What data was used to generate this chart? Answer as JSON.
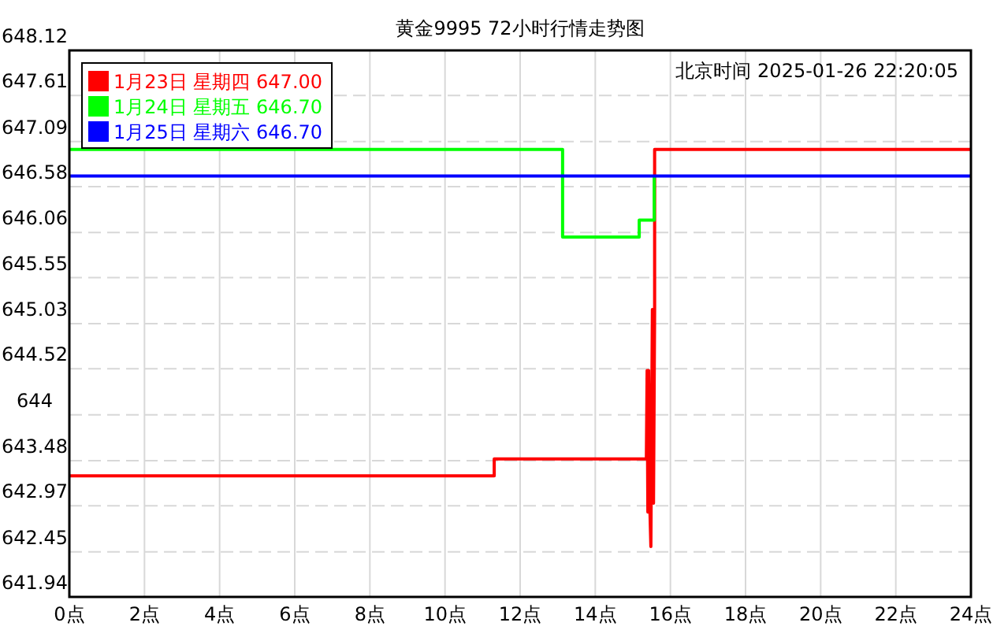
{
  "chart_data": {
    "type": "line",
    "title": "黄金9995 72小时行情走势图",
    "annotations": [
      "北京时间 2025-01-26 22:20:05"
    ],
    "xlim": [
      0,
      24
    ],
    "xticks": [
      {
        "value": 0,
        "label": "0点"
      },
      {
        "value": 2,
        "label": "2点"
      },
      {
        "value": 4,
        "label": "4点"
      },
      {
        "value": 6,
        "label": "6点"
      },
      {
        "value": 8,
        "label": "8点"
      },
      {
        "value": 10,
        "label": "10点"
      },
      {
        "value": 12,
        "label": "12点"
      },
      {
        "value": 14,
        "label": "14点"
      },
      {
        "value": 16,
        "label": "16点"
      },
      {
        "value": 18,
        "label": "18点"
      },
      {
        "value": 20,
        "label": "20点"
      },
      {
        "value": 22,
        "label": "22点"
      },
      {
        "value": 24,
        "label": "24点"
      }
    ],
    "ylim": [
      641.94,
      648.12
    ],
    "yticks": [
      641.94,
      642.45,
      642.97,
      643.48,
      644,
      644.52,
      645.03,
      645.55,
      646.06,
      646.58,
      647.09,
      647.61,
      648.12
    ],
    "grid": true,
    "legend": "top left",
    "marker": "none",
    "line_style": "solid",
    "series": [
      {
        "name": "1月23日 星期四 647.00",
        "color": "#ff0000",
        "x": [
          0,
          11.31,
          11.31,
          15.36,
          15.38,
          15.4,
          15.42,
          15.45,
          15.48,
          15.52,
          15.55,
          15.58,
          15.58,
          24
        ],
        "values": [
          643.31,
          643.31,
          643.5,
          643.5,
          644.5,
          642.9,
          644.5,
          643.0,
          642.51,
          645.19,
          643.0,
          645.19,
          647.0,
          647.0
        ]
      },
      {
        "name": "1月24日 星期五 646.70",
        "color": "#00ff00",
        "x": [
          0,
          13.13,
          13.13,
          15.17,
          15.17,
          15.57,
          15.57
        ],
        "values": [
          647.0,
          647.0,
          646.01,
          646.01,
          646.2,
          646.2,
          646.7
        ]
      },
      {
        "name": "1月25日 星期六 646.70",
        "color": "#0000ff",
        "x": [
          0,
          24
        ],
        "values": [
          646.7,
          646.7
        ]
      }
    ]
  }
}
